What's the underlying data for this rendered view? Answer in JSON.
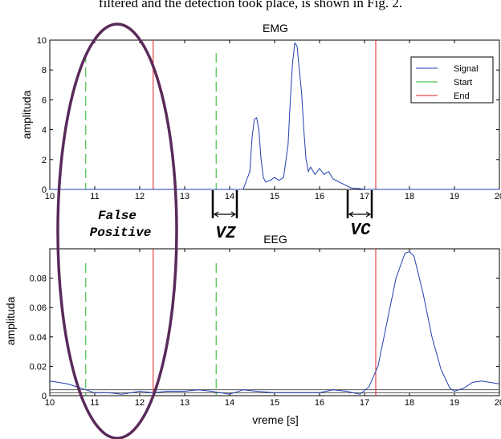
{
  "caption_text": "filtered and the detection took place, is shown in Fig. 2.",
  "annotations": {
    "false_positive_line1": "False",
    "false_positive_line2": "Positive",
    "vz": "VZ",
    "vc": "VC"
  },
  "colors": {
    "signal": "#1f3fb0",
    "start": "#22b022",
    "end": "#e02020",
    "ellipse": "#5a2a5a",
    "axes": "#000000"
  },
  "chart_data": [
    {
      "type": "line",
      "title": "EMG",
      "xlabel": "",
      "ylabel": "amplituda",
      "xlim": [
        10,
        20
      ],
      "ylim": [
        0,
        10
      ],
      "xticks": [
        "10",
        "11",
        "12",
        "13",
        "14",
        "15",
        "16",
        "17",
        "18",
        "19",
        "20"
      ],
      "yticks": [
        "0",
        "2",
        "4",
        "6",
        "8",
        "10"
      ],
      "legend": {
        "position": "top-right",
        "entries": [
          "Signal",
          "Start",
          "End"
        ]
      },
      "series": [
        {
          "name": "Signal",
          "x": [
            10.0,
            13.0,
            14.3,
            14.45,
            14.5,
            14.55,
            14.6,
            14.65,
            14.7,
            14.75,
            14.8,
            14.9,
            15.0,
            15.1,
            15.2,
            15.3,
            15.35,
            15.4,
            15.45,
            15.5,
            15.55,
            15.6,
            15.65,
            15.7,
            15.75,
            15.8,
            15.9,
            16.0,
            16.1,
            16.2,
            16.3,
            16.5,
            16.7,
            16.9,
            17.0,
            20.0
          ],
          "y": [
            0.0,
            0.0,
            0.0,
            1.2,
            3.5,
            4.7,
            4.8,
            4.0,
            2.0,
            0.8,
            0.5,
            0.6,
            0.8,
            0.6,
            0.8,
            3.0,
            6.0,
            8.5,
            9.8,
            9.6,
            8.0,
            6.5,
            4.0,
            2.0,
            1.2,
            1.5,
            1.0,
            1.4,
            1.0,
            1.2,
            0.7,
            0.4,
            0.1,
            0.05,
            0.0,
            0.0
          ]
        },
        {
          "name": "Start",
          "x": [
            10.8,
            13.7
          ]
        },
        {
          "name": "End",
          "x": [
            12.3,
            17.25
          ]
        }
      ]
    },
    {
      "type": "line",
      "title": "EEG",
      "xlabel": "vreme [s]",
      "ylabel": "amplituda",
      "xlim": [
        10,
        20
      ],
      "ylim": [
        0,
        0.1
      ],
      "xticks": [
        "10",
        "11",
        "12",
        "13",
        "14",
        "15",
        "16",
        "17",
        "18",
        "19",
        "20"
      ],
      "yticks": [
        "0",
        "0.02",
        "0.04",
        "0.06",
        "0.08"
      ],
      "threshold_lines": [
        0.002,
        0.004
      ],
      "series": [
        {
          "name": "Signal",
          "x": [
            10.0,
            10.2,
            10.4,
            10.6,
            10.8,
            11.0,
            11.3,
            11.6,
            12.0,
            12.3,
            12.6,
            13.0,
            13.3,
            13.6,
            14.0,
            14.3,
            14.6,
            15.0,
            15.5,
            16.0,
            16.3,
            16.6,
            16.9,
            17.1,
            17.3,
            17.5,
            17.7,
            17.9,
            18.0,
            18.1,
            18.3,
            18.5,
            18.7,
            18.9,
            19.0,
            19.2,
            19.4,
            19.6,
            19.8,
            20.0
          ],
          "y": [
            0.01,
            0.009,
            0.008,
            0.006,
            0.004,
            0.002,
            0.002,
            0.001,
            0.003,
            0.002,
            0.003,
            0.003,
            0.004,
            0.003,
            0.001,
            0.004,
            0.003,
            0.002,
            0.002,
            0.002,
            0.004,
            0.003,
            0.001,
            0.006,
            0.02,
            0.05,
            0.08,
            0.097,
            0.098,
            0.095,
            0.07,
            0.04,
            0.018,
            0.005,
            0.003,
            0.005,
            0.009,
            0.01,
            0.009,
            0.008
          ]
        },
        {
          "name": "Start",
          "x": [
            10.8,
            13.7
          ]
        },
        {
          "name": "End",
          "x": [
            12.3,
            17.25
          ]
        }
      ]
    }
  ]
}
